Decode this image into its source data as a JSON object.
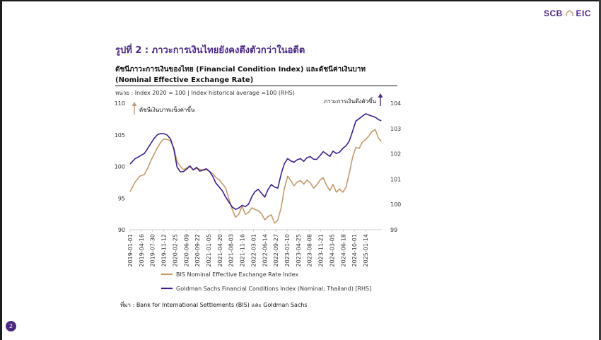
{
  "logo": {
    "text": "SCB",
    "text2": "EIC"
  },
  "figure_title": "รูปที่ 2 : ภาวะการเงินไทยยังคงตึงตัวกว่าในอดีต",
  "page_number": "2",
  "source": "ที่มา : Bank for International Settlements (BIS) และ Goldman Sachs",
  "colors": {
    "accent": "#4b2a84",
    "bis": "#c49a6c",
    "gs": "#3d1f8a"
  },
  "chart_data": {
    "type": "line",
    "title": "ดัชนีภาวะการเงินของไทย (Financial Condition Index) และดัชนีค่าเงินบาท (Nominal Effective Exchange Rate)",
    "subtitle": "หน่วย : Index 2020 = 100 | Index historical average =100 (RHS)",
    "x_ticks": [
      "2019-01-01",
      "2019-04-16",
      "2019-07-30",
      "2019-11-12",
      "2020-02-25",
      "2020-06-09",
      "2020-09-22",
      "2021-01-05",
      "2021-04-20",
      "2021-08-03",
      "2021-11-16",
      "2022-03-01",
      "2022-06-14",
      "2022-09-27",
      "2023-01-10",
      "2023-04-25",
      "2023-08-08",
      "2023-11-21",
      "2024-03-05",
      "2024-06-18",
      "2024-10-01",
      "2025-01-14"
    ],
    "xlim": [
      "2019-01-01",
      "2025-06-15"
    ],
    "y_left": {
      "ticks": [
        90,
        95,
        100,
        105,
        110
      ],
      "ylim": [
        90,
        110
      ]
    },
    "y_right": {
      "ticks": [
        99,
        100,
        101,
        102,
        103,
        104
      ],
      "ylim": [
        99,
        104
      ]
    },
    "legend_placement": "bottom",
    "annotations": [
      {
        "text": "ดัชนีเงินบาทแข็งค่าขึ้น",
        "axis": "left",
        "direction": "up",
        "color": "#c49a6c"
      },
      {
        "text": "ภาวะการเงินตึงตัวขึ้น",
        "axis": "right",
        "direction": "up",
        "color": "#4b2a84"
      }
    ],
    "series": [
      {
        "name": "BIS Nominal Effective Exchange Rate Index",
        "axis": "left",
        "color": "#c49a6c",
        "x": [
          "2019-01-01",
          "2019-02-15",
          "2019-04-01",
          "2019-05-15",
          "2019-06-15",
          "2019-07-15",
          "2019-08-15",
          "2019-09-15",
          "2019-10-15",
          "2019-11-15",
          "2019-12-15",
          "2020-01-15",
          "2020-02-15",
          "2020-03-15",
          "2020-04-15",
          "2020-05-15",
          "2020-06-15",
          "2020-07-15",
          "2020-08-15",
          "2020-09-15",
          "2020-10-15",
          "2020-11-15",
          "2020-12-15",
          "2021-01-15",
          "2021-02-15",
          "2021-03-15",
          "2021-04-15",
          "2021-05-15",
          "2021-06-15",
          "2021-07-15",
          "2021-08-15",
          "2021-09-15",
          "2021-10-15",
          "2021-11-15",
          "2021-12-15",
          "2022-01-15",
          "2022-02-15",
          "2022-03-15",
          "2022-04-15",
          "2022-05-15",
          "2022-06-15",
          "2022-07-15",
          "2022-08-15",
          "2022-09-15",
          "2022-10-15",
          "2022-11-15",
          "2022-12-15",
          "2023-01-15",
          "2023-02-15",
          "2023-03-15",
          "2023-04-15",
          "2023-05-15",
          "2023-06-15",
          "2023-07-15",
          "2023-08-15",
          "2023-09-15",
          "2023-10-15",
          "2023-11-15",
          "2023-12-15",
          "2024-01-15",
          "2024-02-15",
          "2024-03-15",
          "2024-04-15",
          "2024-05-15",
          "2024-06-15",
          "2024-07-15",
          "2024-08-15",
          "2024-09-15",
          "2024-10-15",
          "2024-11-15",
          "2024-12-15",
          "2025-01-15",
          "2025-02-15",
          "2025-03-15",
          "2025-04-15",
          "2025-05-15",
          "2025-06-10"
        ],
        "values": [
          96.0,
          97.5,
          98.5,
          98.8,
          99.8,
          101.0,
          102.0,
          103.0,
          103.8,
          104.3,
          104.2,
          104.0,
          102.8,
          100.8,
          100.0,
          99.5,
          99.8,
          100.2,
          99.5,
          99.8,
          99.6,
          99.4,
          99.5,
          99.2,
          98.8,
          98.2,
          97.8,
          97.2,
          96.5,
          94.8,
          93.2,
          92.0,
          92.5,
          93.8,
          92.5,
          92.8,
          93.5,
          93.2,
          93.0,
          92.5,
          91.5,
          92.0,
          92.3,
          91.0,
          91.5,
          93.5,
          96.5,
          98.5,
          97.8,
          97.0,
          97.6,
          97.8,
          97.2,
          97.8,
          97.4,
          96.5,
          97.0,
          97.8,
          98.2,
          97.0,
          96.2,
          97.2,
          96.0,
          96.5,
          96.0,
          96.8,
          99.0,
          101.5,
          103.0,
          102.8,
          103.8,
          104.2,
          104.8,
          105.5,
          105.8,
          104.5,
          104.0
        ]
      },
      {
        "name": "Goldman Sachs Financial Conditions Index (Nominal; Thailand) [RHS]",
        "axis": "right",
        "color": "#3d1f8a",
        "x": [
          "2019-01-01",
          "2019-02-15",
          "2019-04-01",
          "2019-05-15",
          "2019-06-15",
          "2019-07-15",
          "2019-08-15",
          "2019-09-15",
          "2019-10-15",
          "2019-11-15",
          "2019-12-15",
          "2020-01-15",
          "2020-02-15",
          "2020-03-15",
          "2020-04-15",
          "2020-05-15",
          "2020-06-15",
          "2020-07-15",
          "2020-08-15",
          "2020-09-15",
          "2020-10-15",
          "2020-11-15",
          "2020-12-15",
          "2021-01-15",
          "2021-02-15",
          "2021-03-15",
          "2021-04-15",
          "2021-05-15",
          "2021-06-15",
          "2021-07-15",
          "2021-08-15",
          "2021-09-15",
          "2021-10-15",
          "2021-11-15",
          "2021-12-15",
          "2022-01-15",
          "2022-02-15",
          "2022-03-15",
          "2022-04-15",
          "2022-05-15",
          "2022-06-15",
          "2022-07-15",
          "2022-08-15",
          "2022-09-15",
          "2022-10-15",
          "2022-11-15",
          "2022-12-15",
          "2023-01-15",
          "2023-02-15",
          "2023-03-15",
          "2023-04-15",
          "2023-05-15",
          "2023-06-15",
          "2023-07-15",
          "2023-08-15",
          "2023-09-15",
          "2023-10-15",
          "2023-11-15",
          "2023-12-15",
          "2024-01-15",
          "2024-02-15",
          "2024-03-15",
          "2024-04-15",
          "2024-05-15",
          "2024-06-15",
          "2024-07-15",
          "2024-08-15",
          "2024-09-15",
          "2024-10-15",
          "2024-11-15",
          "2024-12-15",
          "2025-01-15",
          "2025-02-15",
          "2025-03-15",
          "2025-04-15",
          "2025-05-15",
          "2025-06-10"
        ],
        "values": [
          101.6,
          101.8,
          101.9,
          102.0,
          102.2,
          102.4,
          102.6,
          102.75,
          102.8,
          102.8,
          102.75,
          102.6,
          102.2,
          101.5,
          101.3,
          101.3,
          101.4,
          101.5,
          101.35,
          101.45,
          101.3,
          101.35,
          101.4,
          101.3,
          101.1,
          100.85,
          100.7,
          100.55,
          100.3,
          100.1,
          99.9,
          99.8,
          99.85,
          99.95,
          99.9,
          100.0,
          100.3,
          100.5,
          100.6,
          100.45,
          100.3,
          100.6,
          100.8,
          100.7,
          100.65,
          101.2,
          101.6,
          101.8,
          101.7,
          101.65,
          101.75,
          101.8,
          101.7,
          101.85,
          101.9,
          101.8,
          101.8,
          101.95,
          102.1,
          102.0,
          101.9,
          102.1,
          102.0,
          102.05,
          102.2,
          102.3,
          102.5,
          102.9,
          103.3,
          103.4,
          103.5,
          103.6,
          103.55,
          103.5,
          103.45,
          103.35,
          103.3
        ]
      }
    ]
  }
}
